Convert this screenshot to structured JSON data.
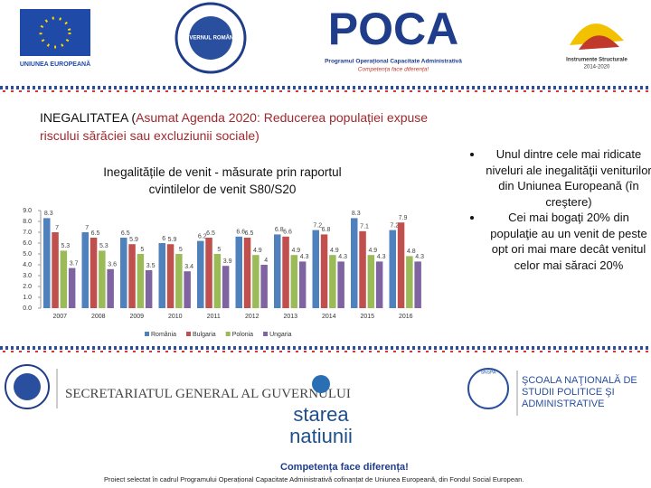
{
  "logos": {
    "eu": "UNIUNEA EUROPEANĂ",
    "gov": "GUVERNUL ROMÂNIEI",
    "poca": "POCA",
    "poca_sub": "Programul Operațional Capacitate Administrativă",
    "poca_motto": "Competența face diferența!",
    "is": "Instrumente Structurale",
    "is_years": "2014-2020",
    "sgg": "SECRETARIATUL GENERAL AL GUVERNULUI",
    "starea": "starea",
    "natiunii": "natiunii",
    "snspa_short": "SNSPA",
    "snspa": "ŞCOALA NAŢIONALĂ DE STUDII POLITICE ŞI ADMINISTRATIVE"
  },
  "heading": {
    "prefix": "INEGALITATEA (",
    "highlight": "Asumat Agenda 2020: Reducerea populației expuse riscului sărăciei sau excluziunii sociale)"
  },
  "bullets": [
    "Unul dintre cele mai ridicate niveluri ale inegalităţii veniturilor din Uniunea Europeană (în creştere)",
    "Cei mai bogaţi 20% din populaţie au un venit de peste opt ori mai mare decât venitul celor mai săraci 20%"
  ],
  "footer": {
    "motto": "Competența face diferența!",
    "note": "Proiect selectat în cadrul Programului Operațional Capacitate Administrativă cofinanțat de Uniunea Europeană, din Fondul Social European."
  },
  "chart_data": {
    "type": "bar",
    "title": "Inegalitățile de venit - măsurate prin raportul cvintilelor de venit S80/S20",
    "categories": [
      "2007",
      "2008",
      "2009",
      "2010",
      "2011",
      "2012",
      "2013",
      "2014",
      "2015",
      "2016"
    ],
    "series": [
      {
        "name": "România",
        "color": "#4f81bd",
        "values": [
          8.3,
          7.0,
          6.5,
          6.0,
          6.2,
          6.6,
          6.8,
          7.2,
          8.3,
          7.2
        ]
      },
      {
        "name": "Bulgaria",
        "color": "#c0504d",
        "values": [
          7.0,
          6.5,
          5.9,
          5.9,
          6.5,
          6.5,
          6.6,
          6.8,
          7.1,
          7.9
        ]
      },
      {
        "name": "Polonia",
        "color": "#9bbb59",
        "values": [
          5.3,
          5.3,
          5.0,
          5.0,
          5.0,
          4.9,
          4.9,
          4.9,
          4.9,
          4.8
        ]
      },
      {
        "name": "Ungaria",
        "color": "#8064a2",
        "values": [
          3.7,
          3.6,
          3.5,
          3.4,
          3.9,
          4.0,
          4.3,
          4.3,
          4.3,
          4.3
        ]
      }
    ],
    "ylim": [
      0,
      9
    ],
    "yticks": [
      {
        "value": 0,
        "label": "0.0"
      },
      {
        "value": 1,
        "label": "1.0"
      },
      {
        "value": 2,
        "label": "2.0"
      },
      {
        "value": 3,
        "label": "3.0"
      },
      {
        "value": 4,
        "label": "4.0"
      },
      {
        "value": 5,
        "label": "5.0"
      },
      {
        "value": 6,
        "label": "6.0"
      },
      {
        "value": 7,
        "label": "7.0"
      },
      {
        "value": 8,
        "label": "8.0"
      },
      {
        "value": 9,
        "label": "9.0"
      }
    ],
    "grid": false,
    "legend": "bottom"
  }
}
